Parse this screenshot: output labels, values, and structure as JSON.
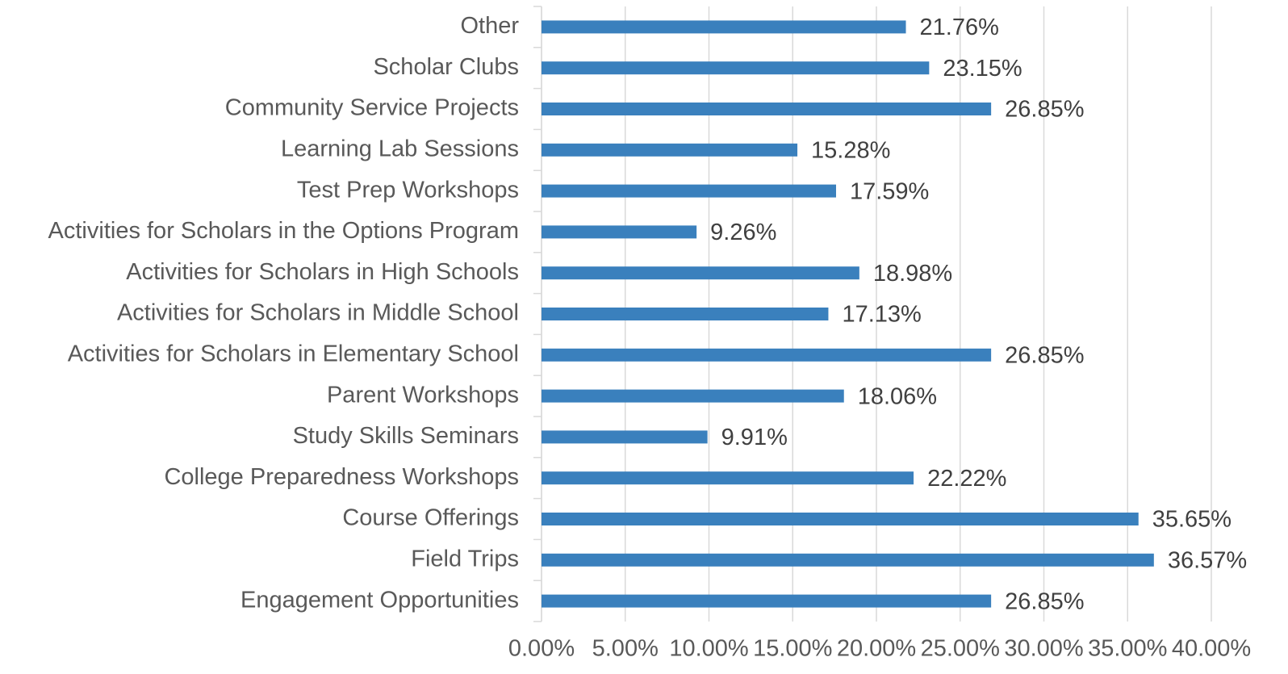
{
  "chart_data": {
    "type": "bar",
    "orientation": "horizontal",
    "categories": [
      "Other",
      "Scholar Clubs",
      "Community Service Projects",
      "Learning Lab Sessions",
      "Test Prep Workshops",
      "Activities for Scholars in the Options Program",
      "Activities for Scholars in High Schools",
      "Activities for Scholars in Middle School",
      "Activities for Scholars in Elementary School",
      "Parent Workshops",
      "Study Skills Seminars",
      "College Preparedness Workshops",
      "Course Offerings",
      "Field Trips",
      "Engagement Opportunities"
    ],
    "values": [
      21.76,
      23.15,
      26.85,
      15.28,
      17.59,
      9.26,
      18.98,
      17.13,
      26.85,
      18.06,
      9.91,
      22.22,
      35.65,
      36.57,
      26.85
    ],
    "value_labels": [
      "21.76%",
      "23.15%",
      "26.85%",
      "15.28%",
      "17.59%",
      "9.26%",
      "18.98%",
      "17.13%",
      "26.85%",
      "18.06%",
      "9.91%",
      "22.22%",
      "35.65%",
      "36.57%",
      "26.85%"
    ],
    "color": "#3a80bd",
    "xlim": [
      0,
      40
    ],
    "xticks": [
      {
        "value": 0,
        "label": "0.00%"
      },
      {
        "value": 5,
        "label": "5.00%"
      },
      {
        "value": 10,
        "label": "10.00%"
      },
      {
        "value": 15,
        "label": "15.00%"
      },
      {
        "value": 20,
        "label": "20.00%"
      },
      {
        "value": 25,
        "label": "25.00%"
      },
      {
        "value": 30,
        "label": "30.00%"
      },
      {
        "value": 35,
        "label": "35.00%"
      },
      {
        "value": 40,
        "label": "40.00%"
      }
    ],
    "grid": true
  }
}
